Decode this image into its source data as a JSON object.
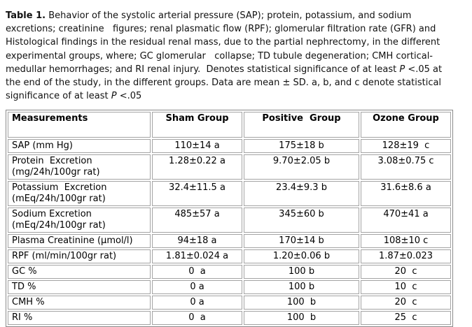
{
  "caption": {
    "lines": [
      [
        [
          "b",
          "Table 1."
        ],
        [
          "n",
          " Behavior of the systolic arterial pressure (SAP); protein, potassium, and sodium"
        ]
      ],
      [
        [
          "n",
          "excretions; creatinine   figures; renal plasmatic flow (RPF); glomerular filtration rate (GFR) and"
        ]
      ],
      [
        [
          "n",
          "Histological findings in the residual renal mass, due to the partial nephrectomy, in the different"
        ]
      ],
      [
        [
          "n",
          "experimental groups, where; GC glomerular   collapse; TD tubule degeneration; CMH cortical-"
        ]
      ],
      [
        [
          "n",
          "medullar hemorrhages; and RI renal injury.  Denotes statistical significance of at least "
        ],
        [
          "i",
          "P"
        ],
        [
          "n",
          " <.05 at"
        ]
      ],
      [
        [
          "n",
          "the end of the study, in the different groups. Data are mean ± SD. a, b, and c denote statistical"
        ]
      ],
      [
        [
          "n",
          "significance of at least "
        ],
        [
          "i",
          "P"
        ],
        [
          "n",
          " <.05"
        ]
      ]
    ]
  },
  "table": {
    "headers": [
      "Measurements",
      "Sham Group",
      "Positive  Group",
      "Ozone Group"
    ],
    "rows": [
      {
        "label": "SAP (mm Hg)",
        "values": [
          "110±14 a",
          "175±18 b",
          "128±19  c"
        ]
      },
      {
        "label": "Protein  Excretion\n(mg/24h/100gr rat)",
        "values": [
          "1.28±0.22 a",
          "9.70±2.05 b",
          "3.08±0.75 c"
        ]
      },
      {
        "label": "Potassium  Excretion\n(mEq/24h/100gr rat)",
        "values": [
          "32.4±11.5 a",
          "23.4±9.3 b",
          "31.6±8.6 a"
        ]
      },
      {
        "label": "Sodium Excretion\n(mEq/24h/100gr rat)",
        "values": [
          "485±57 a",
          "345±60 b",
          "470±41 a"
        ]
      },
      {
        "label": "Plasma Creatinine (µmol/l)",
        "values": [
          "94±18 a",
          "170±14 b",
          "108±10 c"
        ]
      },
      {
        "label": "RPF (ml/min/100gr rat)",
        "values": [
          "1.81±0.024 a",
          "1.20±0.06 b",
          "1.87±0.023"
        ]
      },
      {
        "label": "GC %",
        "values": [
          "0  a",
          "100 b",
          "20  c"
        ]
      },
      {
        "label": "TD %",
        "values": [
          "0 a",
          "100 b",
          "10  c"
        ]
      },
      {
        "label": "CMH %",
        "values": [
          "0 a",
          "100  b",
          "20  c"
        ]
      },
      {
        "label": "RI %",
        "values": [
          "0  a",
          "100  b",
          "25  c"
        ]
      }
    ]
  },
  "colors": {
    "outer_border": "#8a8a8a",
    "cell_border": "#a3a3a3",
    "text": "#000000",
    "background": "#ffffff"
  }
}
